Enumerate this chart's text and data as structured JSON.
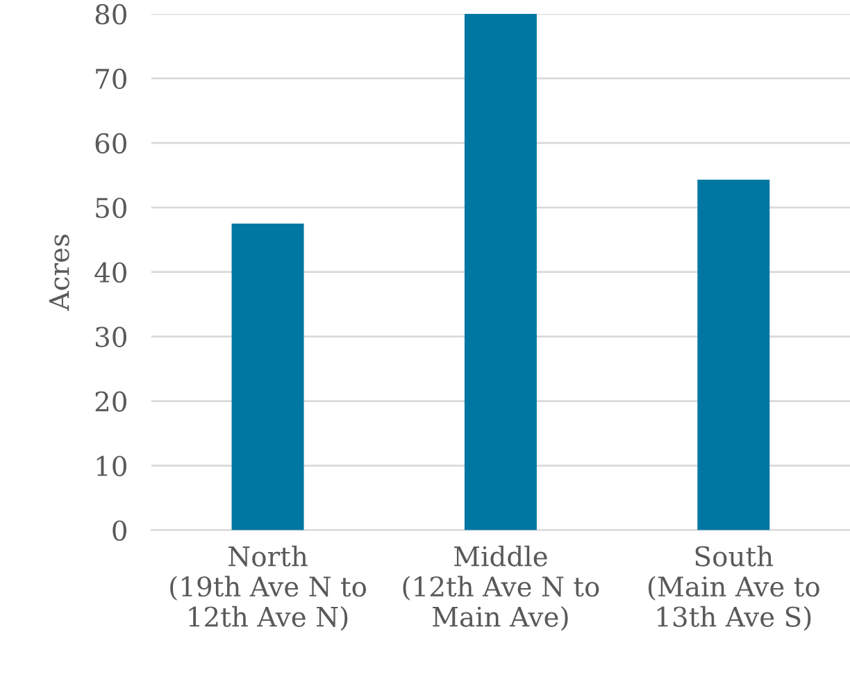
{
  "chart_data": {
    "type": "bar",
    "ylabel": "Acres",
    "categories": [
      "North\n(19th Ave N to\n12th Ave N)",
      "Middle\n(12th Ave N to\nMain Ave)",
      "South\n(Main Ave to\n13th Ave S)"
    ],
    "values": [
      47.5,
      80,
      54.3
    ],
    "color": "#0077a3",
    "ylim": [
      0,
      80
    ],
    "yticks": [
      0,
      10,
      20,
      30,
      40,
      50,
      60,
      70,
      80
    ],
    "grid": "y"
  }
}
